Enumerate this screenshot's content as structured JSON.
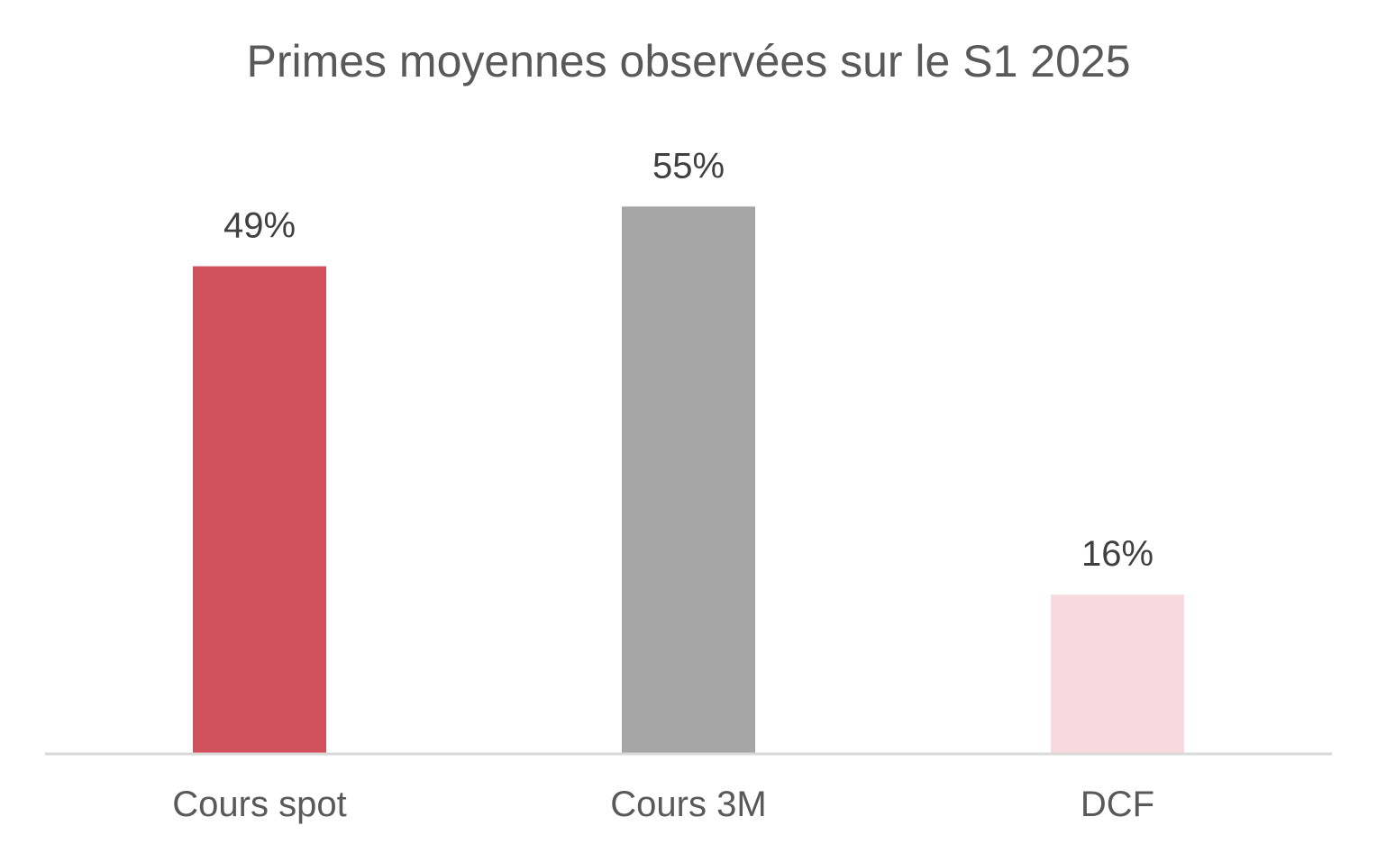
{
  "chart_data": {
    "type": "bar",
    "title": "Primes moyennes observées sur le S1 2025",
    "categories": [
      "Cours spot",
      "Cours 3M",
      "DCF"
    ],
    "values": [
      49,
      55,
      16
    ],
    "value_labels": [
      "49%",
      "55%",
      "16%"
    ],
    "colors": [
      "#D0505C",
      "#A6A6A6",
      "#F6DADF"
    ],
    "xlabel": "",
    "ylabel": "",
    "ylim": [
      0,
      61
    ],
    "grid": false,
    "legend": "none",
    "axis_color": "#D9D9D9"
  }
}
